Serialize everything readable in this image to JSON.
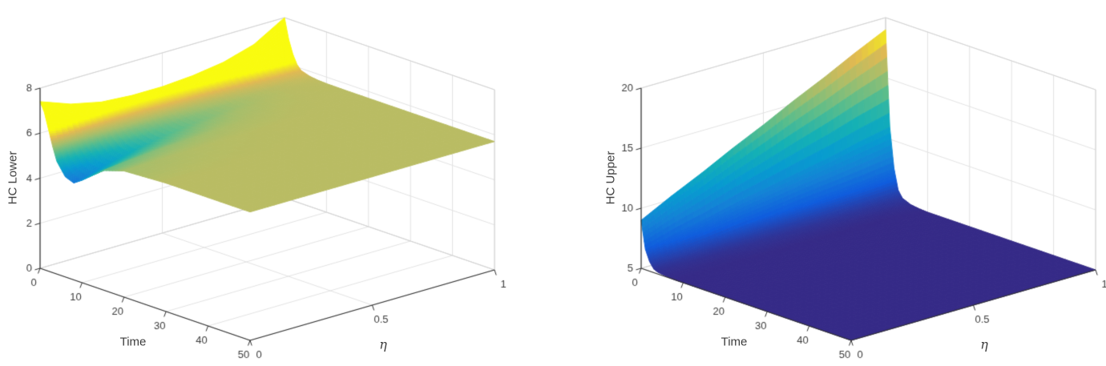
{
  "style": {
    "background": "#ffffff",
    "axis_color": "#2f2f2f",
    "tick_label_color": "#3c3c3c",
    "grid_color": "#e2e2e2",
    "box_edge_color": "#d2d2d2",
    "colormap": "parula",
    "colormap_stops": [
      [
        0,
        "#352a87"
      ],
      [
        0.125,
        "#0f5cdd"
      ],
      [
        0.25,
        "#1481d6"
      ],
      [
        0.375,
        "#079ccf"
      ],
      [
        0.5,
        "#15b1b4"
      ],
      [
        0.625,
        "#59bd8c"
      ],
      [
        0.75,
        "#a5be6b"
      ],
      [
        0.875,
        "#e1b952"
      ],
      [
        1,
        "#f9fb0e"
      ]
    ]
  },
  "chart_data": [
    {
      "type": "surface",
      "zlabel": "HC Lower",
      "xlabel": "Time",
      "ylabel": "η",
      "xlim": [
        0,
        50
      ],
      "ylim": [
        0,
        1
      ],
      "zlim": [
        0,
        8
      ],
      "x_ticks": [
        0,
        10,
        20,
        30,
        40,
        50
      ],
      "y_ticks": [
        0,
        0.5,
        1
      ],
      "z_ticks": [
        0,
        2,
        4,
        6,
        8
      ],
      "color_range": [
        3.8,
        6.2
      ],
      "time_values": [
        0,
        1,
        2,
        3,
        4,
        6,
        8,
        10,
        15,
        20,
        30,
        40,
        50
      ],
      "eta_values": [
        0,
        0.125,
        0.25,
        0.375,
        0.5,
        0.625,
        0.75,
        0.875,
        1
      ],
      "z_grid": [
        [
          7.4,
          6.9,
          6.6,
          6.5,
          6.5,
          6.6,
          6.8,
          7.2,
          8.0
        ],
        [
          7.0,
          6.5,
          6.3,
          6.2,
          6.2,
          6.3,
          6.45,
          6.7,
          7.1
        ],
        [
          6.3,
          6.0,
          5.9,
          5.9,
          5.95,
          6.0,
          6.1,
          6.3,
          6.5
        ],
        [
          5.6,
          5.6,
          5.65,
          5.7,
          5.75,
          5.8,
          5.9,
          6.0,
          6.1
        ],
        [
          5.0,
          5.2,
          5.4,
          5.5,
          5.6,
          5.68,
          5.76,
          5.85,
          5.9
        ],
        [
          4.45,
          4.8,
          5.1,
          5.3,
          5.45,
          5.55,
          5.65,
          5.72,
          5.78
        ],
        [
          4.3,
          4.7,
          5.0,
          5.25,
          5.42,
          5.55,
          5.64,
          5.7,
          5.73
        ],
        [
          4.55,
          4.9,
          5.15,
          5.35,
          5.5,
          5.6,
          5.66,
          5.7,
          5.71
        ],
        [
          5.3,
          5.42,
          5.52,
          5.58,
          5.63,
          5.66,
          5.69,
          5.7,
          5.7
        ],
        [
          5.6,
          5.63,
          5.66,
          5.68,
          5.69,
          5.7,
          5.7,
          5.7,
          5.7
        ],
        [
          5.7,
          5.7,
          5.7,
          5.7,
          5.7,
          5.7,
          5.7,
          5.7,
          5.7
        ],
        [
          5.7,
          5.7,
          5.7,
          5.7,
          5.7,
          5.7,
          5.7,
          5.7,
          5.7
        ],
        [
          5.7,
          5.7,
          5.7,
          5.7,
          5.7,
          5.7,
          5.7,
          5.7,
          5.7
        ]
      ]
    },
    {
      "type": "surface",
      "zlabel": "HC Upper",
      "xlabel": "Time",
      "ylabel": "η",
      "xlim": [
        0,
        50
      ],
      "ylim": [
        0,
        1
      ],
      "zlim": [
        5,
        20
      ],
      "x_ticks": [
        0,
        10,
        20,
        30,
        40,
        50
      ],
      "y_ticks": [
        0,
        0.5,
        1
      ],
      "z_ticks": [
        5,
        10,
        15,
        20
      ],
      "color_range": [
        5,
        19
      ],
      "time_values": [
        0,
        1,
        2,
        3,
        4,
        6,
        8,
        10,
        15,
        20,
        30,
        40,
        50
      ],
      "eta_values": [
        0,
        0.125,
        0.25,
        0.375,
        0.5,
        0.625,
        0.75,
        0.875,
        1
      ],
      "z_grid": [
        [
          9.0,
          10.3,
          11.5,
          12.8,
          14.0,
          15.3,
          16.5,
          17.8,
          19.0
        ],
        [
          6.7,
          7.3,
          7.8,
          8.4,
          8.9,
          9.4,
          9.9,
          10.5,
          11.0
        ],
        [
          5.8,
          6.0,
          6.2,
          6.5,
          6.7,
          7.0,
          7.2,
          7.4,
          7.7
        ],
        [
          5.3,
          5.4,
          5.45,
          5.55,
          5.6,
          5.7,
          5.8,
          5.9,
          6.0
        ],
        [
          5.15,
          5.2,
          5.2,
          5.25,
          5.3,
          5.3,
          5.35,
          5.4,
          5.45
        ],
        [
          5.05,
          5.05,
          5.05,
          5.1,
          5.1,
          5.1,
          5.1,
          5.1,
          5.15
        ],
        [
          5.0,
          5.0,
          5.0,
          5.0,
          5.0,
          5.0,
          5.0,
          5.0,
          5.05
        ],
        [
          5.0,
          5.0,
          5.0,
          5.0,
          5.0,
          5.0,
          5.0,
          5.0,
          5.0
        ],
        [
          5.0,
          5.0,
          5.0,
          5.0,
          5.0,
          5.0,
          5.0,
          5.0,
          5.0
        ],
        [
          5.0,
          5.0,
          5.0,
          5.0,
          5.0,
          5.0,
          5.0,
          5.0,
          5.0
        ],
        [
          5.0,
          5.0,
          5.0,
          5.0,
          5.0,
          5.0,
          5.0,
          5.0,
          5.0
        ],
        [
          5.0,
          5.0,
          5.0,
          5.0,
          5.0,
          5.0,
          5.0,
          5.0,
          5.0
        ],
        [
          5.0,
          5.0,
          5.0,
          5.0,
          5.0,
          5.0,
          5.0,
          5.0,
          5.0
        ]
      ]
    }
  ]
}
